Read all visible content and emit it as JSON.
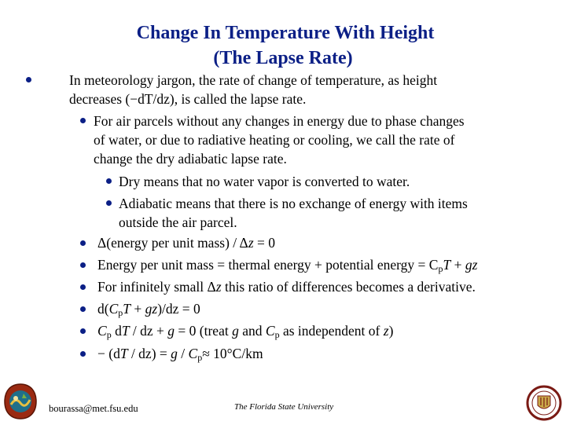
{
  "title": {
    "line1": "Change In Temperature With Height",
    "line2": "(The Lapse Rate)"
  },
  "bullets": {
    "b1_line1": "In meteorology jargon, the rate of change of temperature, as height",
    "b1_line2": "decreases (−dT/dz), is called the lapse rate.",
    "b2_line1": "For air parcels without any changes in energy due to phase changes",
    "b2_line2": "of water, or due to radiative heating or cooling, we call the rate of",
    "b2_line3": "change the dry adiabatic lapse rate.",
    "b3": "Dry means that no water vapor is converted to water.",
    "b4_line1": "Adiabatic means that there is no exchange of energy with items",
    "b4_line2": "outside the air parcel.",
    "eq1": {
      "a": "Δ(energy per unit mass) / Δ",
      "b": "z",
      "c": " = 0"
    },
    "eq2": {
      "a": "Energy per unit mass = thermal energy + potential energy = C",
      "b": "p",
      "c": "T",
      "d": " + ",
      "e": "gz"
    },
    "eq3": {
      "a": "For infinitely small Δ",
      "b": "z",
      "c": " this ratio of differences becomes a derivative."
    },
    "eq4": {
      "a": "d(",
      "b": "C",
      "c": "p",
      "d": "T",
      "e": " + ",
      "f": "gz",
      "g": ")/dz = 0"
    },
    "eq5": {
      "a": "C",
      "b": "p",
      "c": " d",
      "d": "T",
      "e": " / dz + ",
      "f": "g",
      "g": " = 0  (treat ",
      "h": "g",
      "i": " and ",
      "j": "C",
      "k": "p",
      "l": " as independent of ",
      "m": "z",
      "n": ")"
    },
    "eq6": {
      "a": "− (d",
      "b": "T",
      "c": " / dz) = ",
      "d": "g",
      "e": " / ",
      "f": "C",
      "g": "p",
      "h": "≈ 10°C/km"
    }
  },
  "footer": {
    "email": "bourassa@met.fsu.edu",
    "university": "The Florida State University"
  },
  "colors": {
    "title": "#0b1f86",
    "bullet": "#0b1f86"
  }
}
